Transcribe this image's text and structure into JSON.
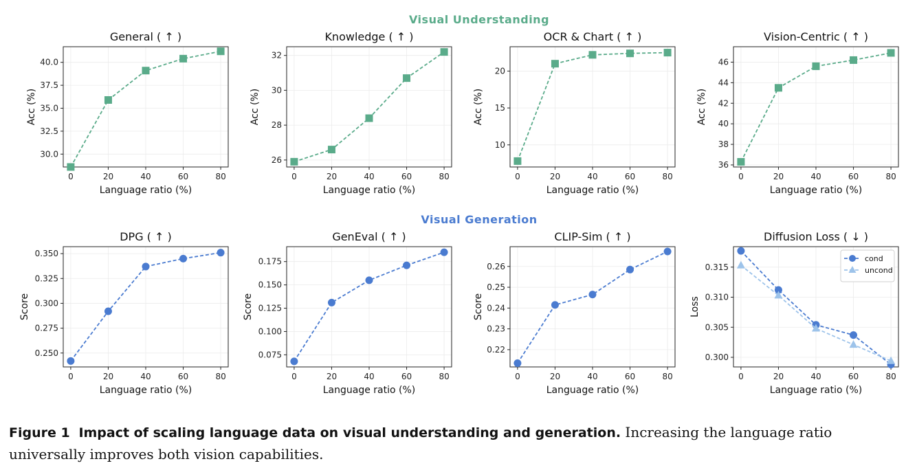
{
  "figure": {
    "section_titles": {
      "understanding": "Visual Understanding",
      "generation": "Visual Generation"
    },
    "colors": {
      "understanding": "#5aab8a",
      "generation": "#4a7bd0",
      "uncond": "#9dc3ea"
    },
    "caption": {
      "label": "Figure 1",
      "title": "Impact of scaling language data on visual understanding and generation.",
      "text": "Increasing the language ratio universally improves both vision capabilities."
    }
  },
  "chart_data": [
    {
      "type": "line",
      "title": "General ( ↑ )",
      "xlabel": "Language ratio (%)",
      "ylabel": "Acc (%)",
      "x": [
        0,
        20,
        40,
        60,
        80
      ],
      "xlim": [
        -4,
        84
      ],
      "ylim": [
        28.6,
        41.7
      ],
      "yticks": [
        "30.0",
        "32.5",
        "35.0",
        "37.5",
        "40.0"
      ],
      "ytick_values": [
        30.0,
        32.5,
        35.0,
        37.5,
        40.0
      ],
      "series": [
        {
          "values": [
            28.6,
            35.9,
            39.1,
            40.4,
            41.2
          ],
          "marker": "square",
          "color": "#5aab8a"
        }
      ],
      "grid": true
    },
    {
      "type": "line",
      "title": "Knowledge ( ↑ )",
      "xlabel": "Language ratio (%)",
      "ylabel": "Acc (%)",
      "x": [
        0,
        20,
        40,
        60,
        80
      ],
      "xlim": [
        -4,
        84
      ],
      "ylim": [
        25.6,
        32.5
      ],
      "yticks": [
        "26",
        "28",
        "30",
        "32"
      ],
      "ytick_values": [
        26,
        28,
        30,
        32
      ],
      "series": [
        {
          "values": [
            25.9,
            26.6,
            28.4,
            30.7,
            32.2
          ],
          "marker": "square",
          "color": "#5aab8a"
        }
      ],
      "grid": true
    },
    {
      "type": "line",
      "title": "OCR & Chart ( ↑ )",
      "xlabel": "Language ratio (%)",
      "ylabel": "Acc (%)",
      "x": [
        0,
        20,
        40,
        60,
        80
      ],
      "xlim": [
        -4,
        84
      ],
      "ylim": [
        7.0,
        23.3
      ],
      "yticks": [
        "10",
        "15",
        "20"
      ],
      "ytick_values": [
        10,
        15,
        20
      ],
      "series": [
        {
          "values": [
            7.8,
            21.0,
            22.2,
            22.4,
            22.5
          ],
          "marker": "square",
          "color": "#5aab8a"
        }
      ],
      "grid": true
    },
    {
      "type": "line",
      "title": "Vision-Centric ( ↑ )",
      "xlabel": "Language ratio (%)",
      "ylabel": "Acc (%)",
      "x": [
        0,
        20,
        40,
        60,
        80
      ],
      "xlim": [
        -4,
        84
      ],
      "ylim": [
        35.8,
        47.5
      ],
      "yticks": [
        "36",
        "38",
        "40",
        "42",
        "44",
        "46"
      ],
      "ytick_values": [
        36,
        38,
        40,
        42,
        44,
        46
      ],
      "series": [
        {
          "values": [
            36.3,
            43.5,
            45.6,
            46.2,
            46.9
          ],
          "marker": "square",
          "color": "#5aab8a"
        }
      ],
      "grid": true
    },
    {
      "type": "line",
      "title": "DPG ( ↑ )",
      "xlabel": "Language ratio (%)",
      "ylabel": "Score",
      "x": [
        0,
        20,
        40,
        60,
        80
      ],
      "xlim": [
        -4,
        84
      ],
      "ylim": [
        0.236,
        0.357
      ],
      "yticks": [
        "0.250",
        "0.275",
        "0.300",
        "0.325",
        "0.350"
      ],
      "ytick_values": [
        0.25,
        0.275,
        0.3,
        0.325,
        0.35
      ],
      "series": [
        {
          "values": [
            0.242,
            0.292,
            0.337,
            0.345,
            0.351
          ],
          "marker": "circle",
          "color": "#4a7bd0"
        }
      ],
      "grid": true
    },
    {
      "type": "line",
      "title": "GenEval ( ↑ )",
      "xlabel": "Language ratio (%)",
      "ylabel": "Score",
      "x": [
        0,
        20,
        40,
        60,
        80
      ],
      "xlim": [
        -4,
        84
      ],
      "ylim": [
        0.062,
        0.191
      ],
      "yticks": [
        "0.075",
        "0.100",
        "0.125",
        "0.150",
        "0.175"
      ],
      "ytick_values": [
        0.075,
        0.1,
        0.125,
        0.15,
        0.175
      ],
      "series": [
        {
          "values": [
            0.068,
            0.131,
            0.155,
            0.171,
            0.185
          ],
          "marker": "circle",
          "color": "#4a7bd0"
        }
      ],
      "grid": true
    },
    {
      "type": "line",
      "title": "CLIP-Sim ( ↑ )",
      "xlabel": "Language ratio (%)",
      "ylabel": "Score",
      "x": [
        0,
        20,
        40,
        60,
        80
      ],
      "xlim": [
        -4,
        84
      ],
      "ylim": [
        0.2117,
        0.2695
      ],
      "yticks": [
        "0.22",
        "0.23",
        "0.24",
        "0.25",
        "0.26"
      ],
      "ytick_values": [
        0.22,
        0.23,
        0.24,
        0.25,
        0.26
      ],
      "series": [
        {
          "values": [
            0.2135,
            0.2415,
            0.2465,
            0.2585,
            0.2672
          ],
          "marker": "circle",
          "color": "#4a7bd0"
        }
      ],
      "grid": true
    },
    {
      "type": "line",
      "title": "Diffusion Loss ( ↓ )",
      "xlabel": "Language ratio (%)",
      "ylabel": "Loss",
      "x": [
        0,
        20,
        40,
        60,
        80
      ],
      "xlim": [
        -4,
        84
      ],
      "ylim": [
        0.2984,
        0.3184
      ],
      "yticks": [
        "0.300",
        "0.305",
        "0.310",
        "0.315"
      ],
      "ytick_values": [
        0.3,
        0.305,
        0.31,
        0.315
      ],
      "series": [
        {
          "name": "cond",
          "values": [
            0.3177,
            0.3112,
            0.3054,
            0.3037,
            0.2988
          ],
          "marker": "circle",
          "color": "#4a7bd0"
        },
        {
          "name": "uncond",
          "values": [
            0.3153,
            0.3103,
            0.3048,
            0.3021,
            0.2994
          ],
          "marker": "triangle",
          "color": "#9dc3ea"
        }
      ],
      "legend": "top-right",
      "grid": true
    }
  ]
}
